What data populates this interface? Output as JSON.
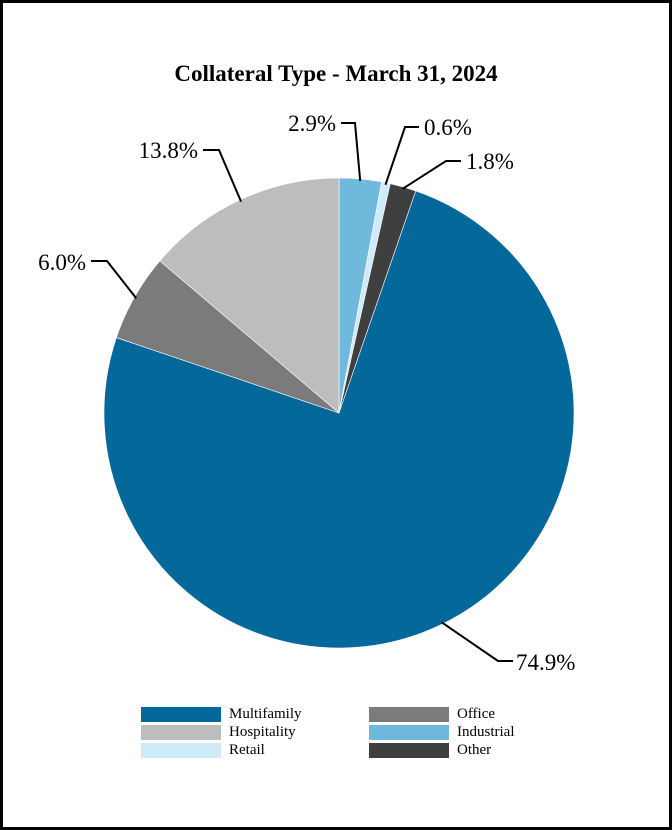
{
  "chart_data": {
    "type": "pie",
    "title": "Collateral Type - March 31, 2024",
    "slices": [
      {
        "name": "Industrial",
        "value": 2.9,
        "label": "2.9%",
        "color": "#6fb9dc"
      },
      {
        "name": "Retail",
        "value": 0.6,
        "label": "0.6%",
        "color": "#cfeaf9"
      },
      {
        "name": "Other",
        "value": 1.8,
        "label": "1.8%",
        "color": "#3f3f3f"
      },
      {
        "name": "Multifamily",
        "value": 74.9,
        "label": "74.9%",
        "color": "#05689b"
      },
      {
        "name": "Office",
        "value": 6.0,
        "label": "6.0%",
        "color": "#7b7b7b"
      },
      {
        "name": "Hospitality",
        "value": 13.8,
        "label": "13.8%",
        "color": "#bdbdbd"
      }
    ],
    "legend": [
      {
        "name": "Multifamily",
        "color": "#05689b"
      },
      {
        "name": "Office",
        "color": "#7b7b7b"
      },
      {
        "name": "Hospitality",
        "color": "#bdbdbd"
      },
      {
        "name": "Industrial",
        "color": "#6fb9dc"
      },
      {
        "name": "Retail",
        "color": "#cfeaf9"
      },
      {
        "name": "Other",
        "color": "#3f3f3f"
      }
    ],
    "legend_position": "bottom"
  }
}
